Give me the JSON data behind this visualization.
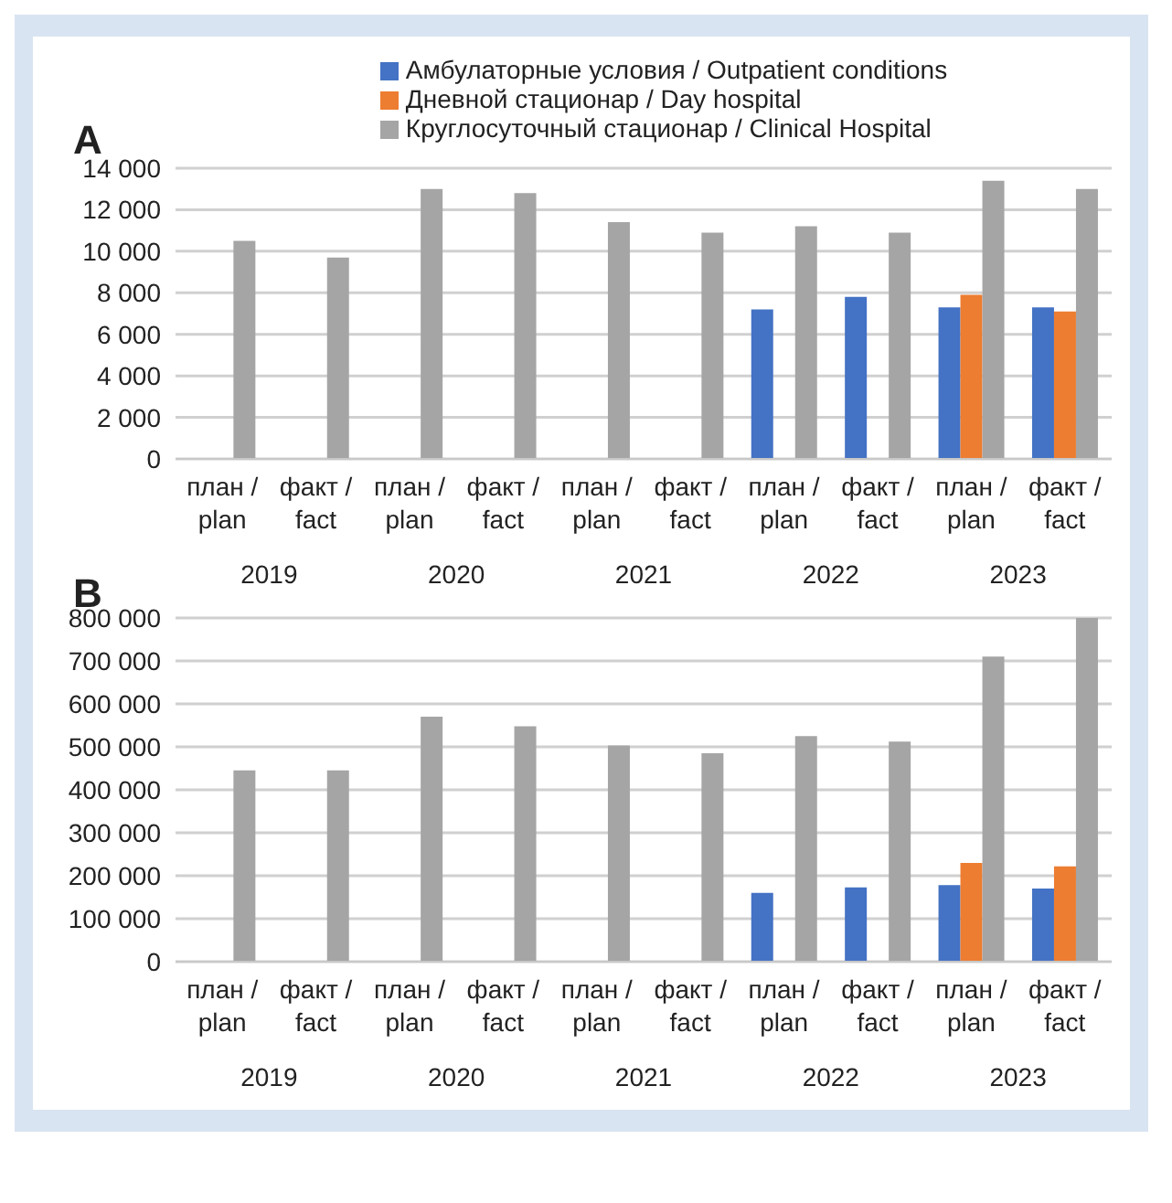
{
  "chart_data": [
    {
      "type": "bar",
      "title": "A",
      "categories": [
        "план / plan",
        "факт / fact",
        "план / plan",
        "факт / fact",
        "план / plan",
        "факт / fact",
        "план / plan",
        "факт / fact",
        "план / plan",
        "факт / fact"
      ],
      "series": [
        {
          "name": "Амбулаторные условия / Outpatient conditions",
          "color": "#4472c4",
          "values": [
            null,
            null,
            null,
            null,
            null,
            null,
            7200,
            7800,
            7300,
            7300
          ]
        },
        {
          "name": "Дневной стационар / Day hospital",
          "color": "#ed7d31",
          "values": [
            null,
            null,
            null,
            null,
            null,
            null,
            null,
            null,
            7900,
            7100
          ]
        },
        {
          "name": "Круглосуточный стационар / Clinical Hospital",
          "color": "#a5a5a5",
          "values": [
            10500,
            9700,
            13000,
            12800,
            11400,
            10900,
            11200,
            10900,
            13400,
            13000
          ]
        }
      ],
      "ylim": [
        0,
        14000
      ],
      "yticks": [
        0,
        {
          "value": 2000,
          "label": "2 000"
        },
        {
          "value": 4000,
          "label": "4 000"
        },
        {
          "value": 6000,
          "label": "6 000"
        },
        {
          "value": 8000,
          "label": "8 000"
        },
        {
          "value": 10000,
          "label": "10 000"
        },
        {
          "value": 12000,
          "label": "12 000"
        },
        {
          "value": 14000,
          "label": "14 000"
        }
      ],
      "annotations": [
        "2019",
        "2020",
        "2021",
        "2022",
        "2023"
      ],
      "grid": "y",
      "legend": "top"
    },
    {
      "type": "bar",
      "title": "B",
      "categories": [
        "план / plan",
        "факт / fact",
        "план / plan",
        "факт / fact",
        "план / plan",
        "факт / fact",
        "план / plan",
        "факт / fact",
        "план / plan",
        "факт / fact"
      ],
      "series": [
        {
          "color": "#4472c4",
          "values": [
            null,
            null,
            null,
            null,
            null,
            null,
            160000,
            173000,
            178000,
            170000
          ]
        },
        {
          "color": "#ed7d31",
          "values": [
            null,
            null,
            null,
            null,
            null,
            null,
            null,
            null,
            230000,
            222000
          ]
        },
        {
          "color": "#a5a5a5",
          "values": [
            445000,
            445000,
            570000,
            548000,
            503000,
            485000,
            525000,
            512000,
            710000,
            800000
          ]
        }
      ],
      "ylim": [
        0,
        800000
      ],
      "yticks": [
        0,
        {
          "value": 100000,
          "label": "100 000"
        },
        {
          "value": 200000,
          "label": "200 000"
        },
        {
          "value": 300000,
          "label": "300 000"
        },
        {
          "value": 400000,
          "label": "400 000"
        },
        {
          "value": 500000,
          "label": "500 000"
        },
        {
          "value": 600000,
          "label": "600 000"
        },
        {
          "value": 700000,
          "label": "700 000"
        },
        {
          "value": 800000,
          "label": "800 000"
        }
      ],
      "annotations": [
        "2019",
        "2020",
        "2021",
        "2022",
        "2023"
      ],
      "grid": "y"
    }
  ]
}
